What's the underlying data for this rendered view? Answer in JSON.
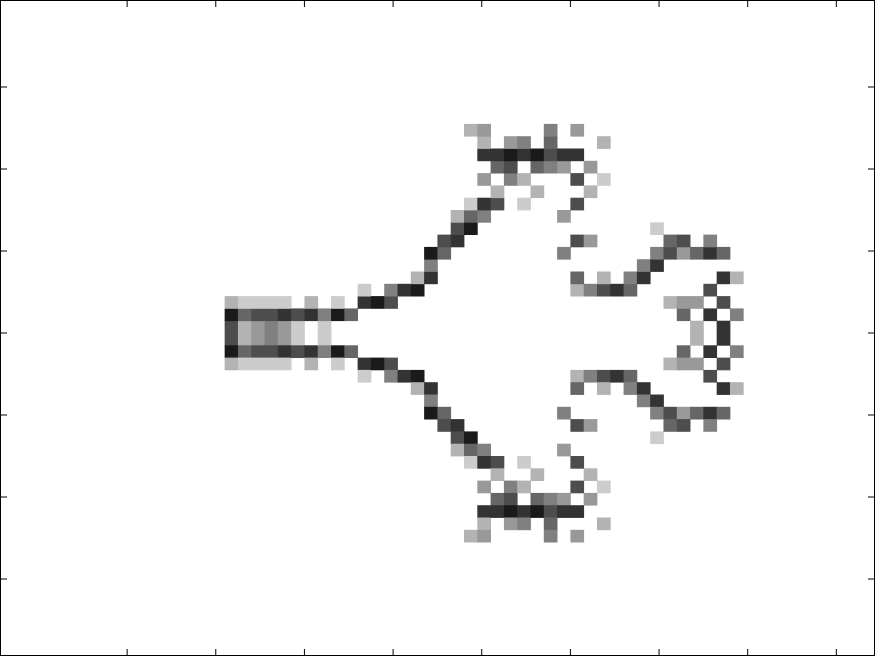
{
  "chart_data": {
    "type": "heatmap",
    "xlim": [
      -0.434,
      9.436
    ],
    "ylim": [
      -3.939,
      4.061
    ],
    "xticks": [
      1,
      2,
      3,
      4,
      5,
      6,
      7,
      8,
      9
    ],
    "yticks": [
      -3,
      -2,
      -1,
      0,
      1,
      2,
      3
    ],
    "color_low": "#ffffff",
    "color_high": "#000000",
    "columns": [
      {
        "x": 2.175,
        "y": [
          0.075,
          0.225,
          0.375,
          -0.075,
          -0.225,
          -0.375
        ],
        "values": [
          0.7,
          0.9,
          0.3,
          0.7,
          0.9,
          0.3
        ]
      },
      {
        "x": 2.325,
        "y": [
          0.075,
          0.225,
          0.375,
          -0.075,
          -0.225,
          -0.375
        ],
        "values": [
          0.3,
          0.6,
          0.2,
          0.3,
          0.6,
          0.2
        ]
      },
      {
        "x": 2.475,
        "y": [
          0.075,
          0.225,
          0.375,
          -0.075,
          -0.225,
          -0.375
        ],
        "values": [
          0.4,
          0.7,
          0.2,
          0.4,
          0.7,
          0.2
        ]
      },
      {
        "x": 2.625,
        "y": [
          0.075,
          0.225,
          0.375,
          -0.075,
          -0.225,
          -0.375
        ],
        "values": [
          0.5,
          0.7,
          0.2,
          0.5,
          0.7,
          0.2
        ]
      },
      {
        "x": 2.775,
        "y": [
          0.075,
          0.225,
          0.375,
          -0.075,
          -0.225,
          -0.375
        ],
        "values": [
          0.4,
          0.8,
          0.2,
          0.4,
          0.8,
          0.2
        ]
      },
      {
        "x": 2.925,
        "y": [
          0.075,
          0.225,
          -0.075,
          -0.225
        ],
        "values": [
          0.2,
          0.7,
          0.2,
          0.7
        ]
      },
      {
        "x": 3.075,
        "y": [
          0.225,
          0.375,
          -0.225,
          -0.375
        ],
        "values": [
          0.8,
          0.3,
          0.8,
          0.3
        ]
      },
      {
        "x": 3.225,
        "y": [
          0.075,
          0.225,
          -0.075,
          -0.225
        ],
        "values": [
          0.2,
          0.5,
          0.2,
          0.5
        ]
      },
      {
        "x": 3.375,
        "y": [
          0.225,
          0.375,
          -0.225,
          -0.375
        ],
        "values": [
          0.9,
          0.2,
          0.9,
          0.2
        ]
      },
      {
        "x": 3.525,
        "y": [
          0.225,
          -0.225
        ],
        "values": [
          0.6,
          0.6
        ]
      },
      {
        "x": 3.675,
        "y": [
          0.375,
          0.525,
          -0.375,
          -0.525
        ],
        "values": [
          0.8,
          0.2,
          0.8,
          0.2
        ]
      },
      {
        "x": 3.825,
        "y": [
          0.375,
          -0.375
        ],
        "values": [
          0.9,
          0.9
        ]
      },
      {
        "x": 3.975,
        "y": [
          0.375,
          0.525,
          -0.375,
          -0.525
        ],
        "values": [
          0.7,
          0.5,
          0.7,
          0.5
        ]
      },
      {
        "x": 4.125,
        "y": [
          0.525,
          -0.525
        ],
        "values": [
          0.8,
          0.8
        ]
      },
      {
        "x": 4.275,
        "y": [
          0.525,
          0.675,
          -0.525,
          -0.675
        ],
        "values": [
          0.9,
          0.3,
          0.9,
          0.3
        ]
      },
      {
        "x": 4.425,
        "y": [
          0.675,
          0.825,
          0.975,
          -0.675,
          -0.825,
          -0.975
        ],
        "values": [
          0.8,
          0.5,
          0.9,
          0.8,
          0.5,
          0.9
        ]
      },
      {
        "x": 4.575,
        "y": [
          0.975,
          1.125,
          -0.975,
          -1.125
        ],
        "values": [
          0.6,
          0.7,
          0.6,
          0.7
        ]
      },
      {
        "x": 4.725,
        "y": [
          1.125,
          1.275,
          1.425,
          -1.125,
          -1.275,
          -1.425
        ],
        "values": [
          0.8,
          0.7,
          0.3,
          0.8,
          0.7,
          0.3
        ]
      },
      {
        "x": 4.875,
        "y": [
          1.275,
          1.425,
          1.575,
          2.475,
          -1.275,
          -1.425,
          -1.575,
          -2.475
        ],
        "values": [
          0.9,
          0.6,
          0.2,
          0.3,
          0.9,
          0.6,
          0.2,
          0.3
        ]
      },
      {
        "x": 5.025,
        "y": [
          1.425,
          1.575,
          1.875,
          2.175,
          2.325,
          2.475,
          -1.425,
          -1.575,
          -1.875,
          -2.175,
          -2.325,
          -2.475
        ],
        "values": [
          0.5,
          0.8,
          0.4,
          0.8,
          0.3,
          0.4,
          0.5,
          0.8,
          0.4,
          0.8,
          0.3,
          0.4
        ]
      },
      {
        "x": 5.175,
        "y": [
          1.575,
          1.725,
          2.025,
          2.175,
          -1.575,
          -1.725,
          -2.025,
          -2.175
        ],
        "values": [
          0.7,
          0.3,
          0.6,
          0.8,
          0.7,
          0.3,
          0.6,
          0.8
        ]
      },
      {
        "x": 5.325,
        "y": [
          1.875,
          2.025,
          2.175,
          2.325,
          -1.875,
          -2.025,
          -2.175,
          -2.325
        ],
        "values": [
          0.5,
          0.7,
          0.9,
          0.4,
          0.5,
          0.7,
          0.9,
          0.4
        ]
      },
      {
        "x": 5.475,
        "y": [
          1.575,
          1.875,
          2.175,
          2.325,
          -1.575,
          -1.875,
          -2.175,
          -2.325
        ],
        "values": [
          0.2,
          0.3,
          0.8,
          0.5,
          0.2,
          0.3,
          0.8,
          0.5
        ]
      },
      {
        "x": 5.625,
        "y": [
          1.725,
          2.025,
          2.175,
          -1.725,
          -2.025,
          -2.175
        ],
        "values": [
          0.3,
          0.6,
          0.9,
          0.3,
          0.6,
          0.9
        ]
      },
      {
        "x": 5.775,
        "y": [
          2.025,
          2.175,
          2.325,
          2.475,
          -2.025,
          -2.175,
          -2.325,
          -2.475
        ],
        "values": [
          0.5,
          0.7,
          0.6,
          0.5,
          0.5,
          0.7,
          0.6,
          0.5
        ]
      },
      {
        "x": 5.925,
        "y": [
          0.975,
          1.425,
          2.025,
          2.175,
          -0.975,
          -1.425,
          -2.025,
          -2.175
        ],
        "values": [
          0.5,
          0.4,
          0.4,
          0.8,
          0.5,
          0.4,
          0.4,
          0.8
        ]
      },
      {
        "x": 6.075,
        "y": [
          0.525,
          0.675,
          1.125,
          1.575,
          1.875,
          2.175,
          2.475,
          -0.525,
          -0.675,
          -1.125,
          -1.575,
          -1.875,
          -2.175,
          -2.475
        ],
        "values": [
          0.3,
          0.6,
          0.7,
          0.7,
          0.7,
          0.8,
          0.4,
          0.3,
          0.6,
          0.7,
          0.7,
          0.7,
          0.8,
          0.4
        ]
      },
      {
        "x": 6.225,
        "y": [
          0.525,
          1.125,
          1.725,
          2.025,
          -0.525,
          -1.125,
          -1.725,
          -2.025
        ],
        "values": [
          0.5,
          0.4,
          0.3,
          0.4,
          0.5,
          0.4,
          0.3,
          0.4
        ]
      },
      {
        "x": 6.375,
        "y": [
          0.525,
          0.675,
          1.875,
          2.325,
          -0.525,
          -0.675,
          -1.875,
          -2.325
        ],
        "values": [
          0.7,
          0.3,
          0.2,
          0.3,
          0.7,
          0.3,
          0.2,
          0.3
        ]
      },
      {
        "x": 6.525,
        "y": [
          0.525,
          -0.525
        ],
        "values": [
          0.8,
          0.8
        ]
      },
      {
        "x": 6.675,
        "y": [
          0.525,
          0.675,
          -0.525,
          -0.675
        ],
        "values": [
          0.6,
          0.5,
          0.6,
          0.5
        ]
      },
      {
        "x": 6.825,
        "y": [
          0.675,
          0.825,
          -0.675,
          -0.825
        ],
        "values": [
          0.8,
          0.5,
          0.8,
          0.5
        ]
      },
      {
        "x": 6.975,
        "y": [
          0.825,
          0.975,
          1.275,
          -0.825,
          -0.975,
          -1.275
        ],
        "values": [
          0.8,
          0.5,
          0.2,
          0.8,
          0.5,
          0.2
        ]
      },
      {
        "x": 7.125,
        "y": [
          0.375,
          0.975,
          1.125,
          -0.375,
          -0.975,
          -1.125
        ],
        "values": [
          0.3,
          0.7,
          0.6,
          0.3,
          0.7,
          0.6
        ]
      },
      {
        "x": 7.275,
        "y": [
          0.225,
          0.375,
          0.975,
          1.125,
          -0.225,
          -0.375,
          -0.975,
          -1.125
        ],
        "values": [
          0.6,
          0.4,
          0.4,
          0.7,
          0.6,
          0.4,
          0.4,
          0.7
        ]
      },
      {
        "x": 7.425,
        "y": [
          0.075,
          0.375,
          0.975,
          -0.075,
          -0.375,
          -0.975
        ],
        "values": [
          0.3,
          0.4,
          0.6,
          0.3,
          0.4,
          0.6
        ]
      },
      {
        "x": 7.575,
        "y": [
          0.225,
          0.525,
          0.975,
          1.125,
          -0.225,
          -0.525,
          -0.975,
          -1.125
        ],
        "values": [
          0.8,
          0.7,
          0.8,
          0.5,
          0.8,
          0.7,
          0.8,
          0.5
        ]
      },
      {
        "x": 7.725,
        "y": [
          0.075,
          0.375,
          0.675,
          0.975,
          -0.075,
          -0.375,
          -0.675,
          -0.975
        ],
        "values": [
          0.8,
          0.7,
          0.8,
          0.6,
          0.8,
          0.7,
          0.8,
          0.6
        ]
      },
      {
        "x": 7.875,
        "y": [
          0.225,
          0.675,
          -0.225,
          -0.675
        ],
        "values": [
          0.5,
          0.3,
          0.5,
          0.3
        ]
      }
    ]
  }
}
